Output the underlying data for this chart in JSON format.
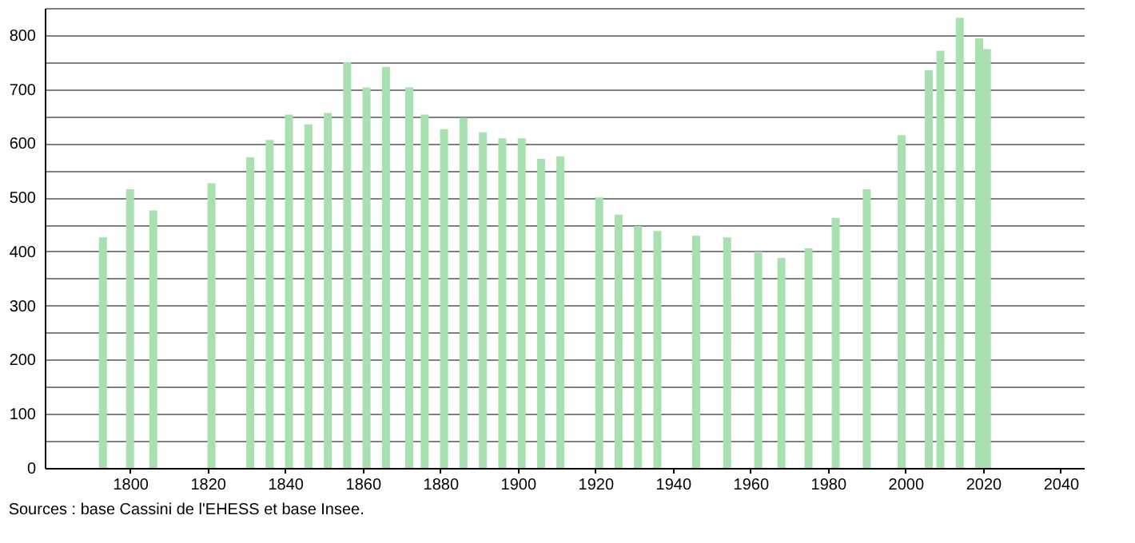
{
  "chart_data": {
    "type": "bar",
    "color": "#a8e0b0",
    "x": [
      1793,
      1800,
      1806,
      1821,
      1831,
      1836,
      1841,
      1846,
      1851,
      1856,
      1861,
      1866,
      1872,
      1876,
      1881,
      1886,
      1891,
      1896,
      1901,
      1906,
      1911,
      1921,
      1926,
      1931,
      1936,
      1946,
      1954,
      1962,
      1968,
      1975,
      1982,
      1990,
      1999,
      2006,
      2009,
      2014,
      2019,
      2021
    ],
    "values": [
      426,
      515,
      476,
      526,
      574,
      606,
      653,
      635,
      656,
      750,
      703,
      741,
      703,
      653,
      626,
      647,
      620,
      609,
      609,
      571,
      576,
      500,
      468,
      447,
      438,
      429,
      426,
      400,
      388,
      406,
      462,
      515,
      615,
      735,
      771,
      832,
      794,
      774
    ],
    "xlim": [
      1778,
      2046
    ],
    "xticks": [
      1800,
      1820,
      1840,
      1860,
      1880,
      1900,
      1920,
      1940,
      1960,
      1980,
      2000,
      2020,
      2040
    ],
    "ylim": [
      0,
      850
    ],
    "yticks": [
      0,
      {
        "value": 50,
        "label": null
      },
      100,
      {
        "value": 150,
        "label": null
      },
      200,
      {
        "value": 250,
        "label": null
      },
      300,
      {
        "value": 350,
        "label": null
      },
      400,
      {
        "value": 450,
        "label": null
      },
      500,
      {
        "value": 550,
        "label": null
      },
      600,
      {
        "value": 650,
        "label": null
      },
      700,
      {
        "value": 750,
        "label": null
      },
      800,
      {
        "value": 850,
        "label": null
      }
    ],
    "grid": "y",
    "annotations": [
      "Sources : base Cassini de l'EHESS et base Insee."
    ]
  }
}
